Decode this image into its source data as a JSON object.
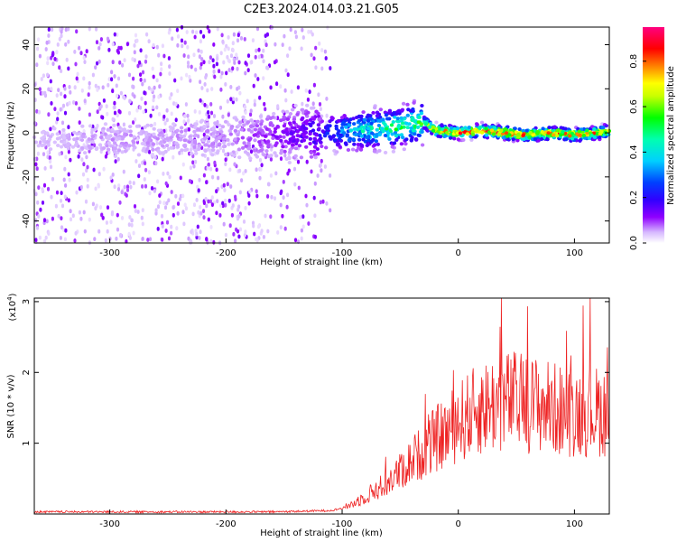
{
  "title": "C2E3.2024.014.03.21.G05",
  "chart_data": [
    {
      "type": "heatmap",
      "xlabel": "Height of straight line (km)",
      "ylabel": "Frequency (Hz)",
      "xlim": [
        -365,
        130
      ],
      "ylim": [
        -50,
        48
      ],
      "x_ticks": [
        -300,
        -200,
        -100,
        0,
        100
      ],
      "y_ticks": [
        -40,
        -20,
        0,
        20,
        40
      ],
      "colorscale": [
        "#ffffff",
        "#e0c8ff",
        "#8f00ff",
        "#3f00ff",
        "#0000ff",
        "#00c8ff",
        "#00ffc8",
        "#00ff00",
        "#c8ff00",
        "#ffff00",
        "#ff8000",
        "#ff0000",
        "#ff0080"
      ],
      "colorbar": {
        "label": "Normalized spectral amplitude",
        "range": [
          0.0,
          0.95
        ],
        "ticks": [
          "0.0",
          "0.2",
          "0.4",
          "0.6",
          "0.8"
        ]
      },
      "ridge": {
        "x": [
          -360,
          -300,
          -250,
          -200,
          -160,
          -120,
          -90,
          -60,
          -40,
          -30,
          -20,
          0,
          20,
          40,
          60,
          80,
          100,
          120,
          130
        ],
        "frequency": [
          -3,
          -3,
          -3,
          -2,
          -1,
          0,
          1,
          2,
          4,
          5,
          1,
          0,
          1,
          0,
          -1,
          0,
          -1,
          0,
          1
        ],
        "amplitude": [
          0.05,
          0.07,
          0.07,
          0.08,
          0.12,
          0.22,
          0.45,
          0.55,
          0.6,
          0.65,
          0.85,
          0.9,
          0.92,
          0.95,
          0.9,
          0.92,
          0.88,
          0.85,
          0.8
        ]
      }
    },
    {
      "type": "line",
      "xlabel": "Height of straight line (km)",
      "ylabel": "SNR (10 * v/v)",
      "y_multiplier": "(x10",
      "y_exponent": "4",
      "y_multiplier_close": ")",
      "xlim": [
        -365,
        130
      ],
      "ylim": [
        0,
        3.05
      ],
      "x_ticks": [
        -300,
        -200,
        -100,
        0,
        100
      ],
      "y_ticks": [
        1,
        2,
        3
      ],
      "color": "#ee2222",
      "series": [
        {
          "x": [
            -365,
            -320,
            -280,
            -240,
            -200,
            -160,
            -130,
            -110,
            -100,
            -90,
            -80,
            -70,
            -60,
            -50,
            -40,
            -30,
            -20,
            -10,
            0,
            10,
            20,
            30,
            40,
            50,
            60,
            70,
            80,
            90,
            100,
            110,
            120,
            130
          ],
          "y": [
            0.03,
            0.03,
            0.03,
            0.03,
            0.03,
            0.03,
            0.04,
            0.05,
            0.08,
            0.15,
            0.25,
            0.35,
            0.45,
            0.6,
            0.75,
            0.9,
            1.05,
            1.15,
            1.3,
            1.4,
            1.5,
            1.55,
            1.6,
            1.6,
            1.55,
            1.55,
            1.5,
            1.45,
            1.45,
            1.45,
            1.45,
            1.45
          ]
        }
      ]
    }
  ]
}
